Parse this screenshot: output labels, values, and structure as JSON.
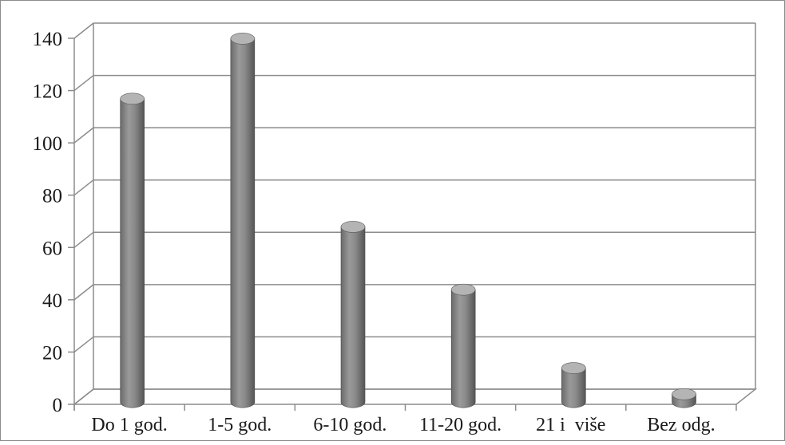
{
  "chart_data": {
    "type": "bar",
    "style": "3d-cylinder",
    "title": "",
    "xlabel": "",
    "ylabel": "",
    "categories": [
      "Do 1 god.",
      "1-5 god.",
      "6-10 god.",
      "11-20 god.",
      "21 i  više",
      "Bez odg."
    ],
    "values": [
      116,
      139,
      67,
      43,
      13,
      3
    ],
    "ylim": [
      0,
      140
    ],
    "yticks": [
      0,
      20,
      40,
      60,
      80,
      100,
      120,
      140
    ],
    "grid": true,
    "legend": "none",
    "colors": {
      "bar": "#8a8a8a",
      "bar_dark": "#5a5a5a",
      "bar_light": "#b4b4b4",
      "grid": "#8c8c8c",
      "frame": "#8c8c8c"
    }
  }
}
